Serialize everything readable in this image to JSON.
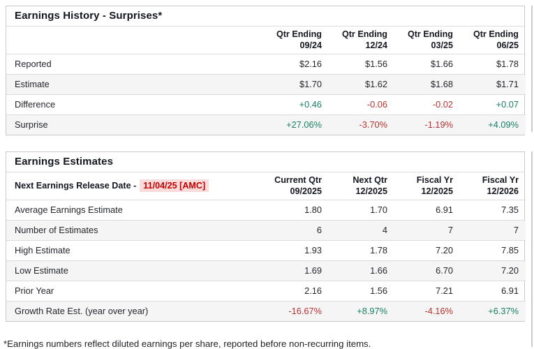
{
  "colors": {
    "positive": "#178066",
    "negative": "#b8322f",
    "release-bg": "#fbdcdc",
    "release-text": "#c20000"
  },
  "history": {
    "title": "Earnings History - Surprises*",
    "columns": [
      {
        "line1": "Qtr Ending",
        "line2": "09/24"
      },
      {
        "line1": "Qtr Ending",
        "line2": "12/24"
      },
      {
        "line1": "Qtr Ending",
        "line2": "03/25"
      },
      {
        "line1": "Qtr Ending",
        "line2": "06/25"
      }
    ],
    "rows": [
      {
        "label": "Reported",
        "values": [
          "$2.16",
          "$1.56",
          "$1.66",
          "$1.78"
        ]
      },
      {
        "label": "Estimate",
        "values": [
          "$1.70",
          "$1.62",
          "$1.68",
          "$1.71"
        ]
      },
      {
        "label": "Difference",
        "values": [
          "+0.46",
          "-0.06",
          "-0.02",
          "+0.07"
        ]
      },
      {
        "label": "Surprise",
        "values": [
          "+27.06%",
          "-3.70%",
          "-1.19%",
          "+4.09%"
        ]
      }
    ]
  },
  "estimates": {
    "title": "Earnings Estimates",
    "release_label": "Next Earnings Release Date -",
    "release_date": "11/04/25 [AMC]",
    "columns": [
      {
        "line1": "Current Qtr",
        "line2": "09/2025"
      },
      {
        "line1": "Next Qtr",
        "line2": "12/2025"
      },
      {
        "line1": "Fiscal Yr",
        "line2": "12/2025"
      },
      {
        "line1": "Fiscal Yr",
        "line2": "12/2026"
      }
    ],
    "rows": [
      {
        "label": "Average Earnings Estimate",
        "values": [
          "1.80",
          "1.70",
          "6.91",
          "7.35"
        ]
      },
      {
        "label": "Number of Estimates",
        "values": [
          "6",
          "4",
          "7",
          "7"
        ]
      },
      {
        "label": "High Estimate",
        "values": [
          "1.93",
          "1.78",
          "7.20",
          "7.85"
        ]
      },
      {
        "label": "Low Estimate",
        "values": [
          "1.69",
          "1.66",
          "6.70",
          "7.20"
        ]
      },
      {
        "label": "Prior Year",
        "values": [
          "2.16",
          "1.56",
          "7.21",
          "6.91"
        ]
      },
      {
        "label": "Growth Rate Est. (year over year)",
        "values": [
          "-16.67%",
          "+8.97%",
          "-4.16%",
          "+6.37%"
        ]
      }
    ]
  },
  "footnote": "*Earnings numbers reflect diluted earnings per share, reported before non-recurring items."
}
